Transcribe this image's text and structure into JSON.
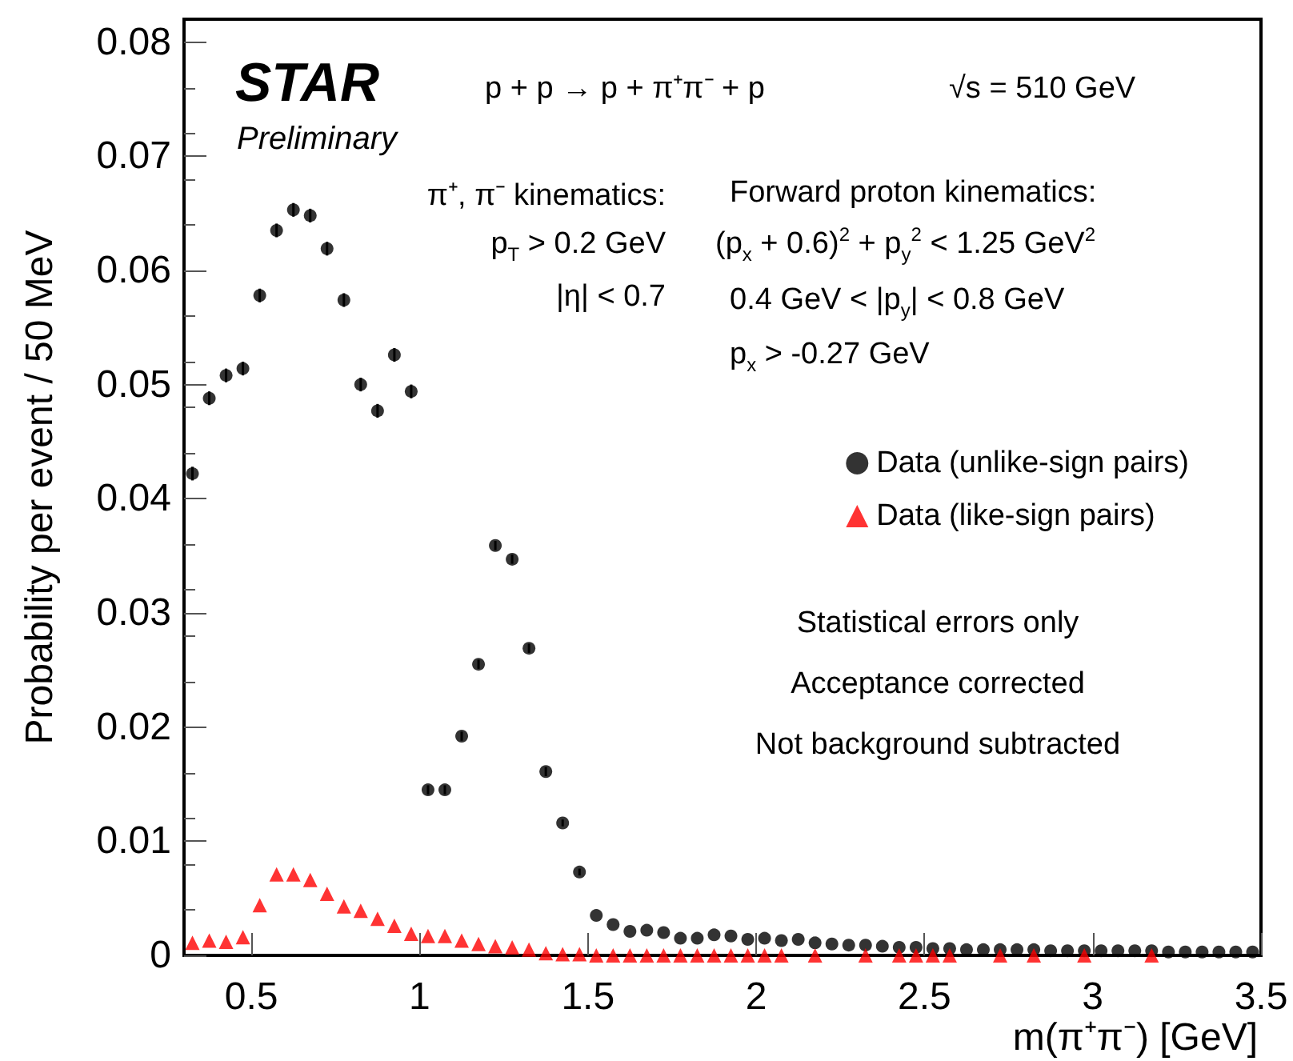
{
  "chart_data": {
    "type": "scatter",
    "xlabel": "m(π⁺π⁻) [GeV]",
    "ylabel": "Probability per event / 50 MeV",
    "xlim": [
      0.3,
      3.5
    ],
    "xticks": [
      0.5,
      1,
      1.5,
      2,
      2.5,
      3,
      3.5
    ],
    "ylim": [
      0,
      0.082
    ],
    "yticks": [
      0,
      0.01,
      0.02,
      0.03,
      0.04,
      0.05,
      0.06,
      0.07,
      0.08
    ],
    "grid": false,
    "legend": "right",
    "annotations": [
      "STAR",
      "Preliminary",
      "p + p → p + π⁺π⁻ + p",
      "√s = 510 GeV",
      "π⁺, π⁻ kinematics:",
      "p$_{T}$ > 0.2 GeV",
      "|η| < 0.7",
      "Forward proton kinematics:",
      "(p$_{x}$ + 0.6)$^{2}$ + p$_{y}$$^{2}$ < 1.25 GeV$^{2}$",
      "0.4 GeV < |p$_{y}$| < 0.8 GeV",
      "p$_{x}$ > -0.27 GeV",
      "Statistical errors only",
      "Acceptance corrected",
      "Not background subtracted"
    ],
    "series": [
      {
        "name": "Data (unlike-sign pairs)",
        "color": "#000000",
        "marker": "circle",
        "x": [
          0.325,
          0.375,
          0.425,
          0.475,
          0.525,
          0.575,
          0.625,
          0.675,
          0.725,
          0.775,
          0.825,
          0.875,
          0.925,
          0.975,
          1.025,
          1.075,
          1.125,
          1.175,
          1.225,
          1.275,
          1.325,
          1.375,
          1.425,
          1.475,
          1.525,
          1.575,
          1.625,
          1.675,
          1.725,
          1.775,
          1.825,
          1.875,
          1.925,
          1.975,
          2.025,
          2.075,
          2.125,
          2.175,
          2.225,
          2.275,
          2.325,
          2.375,
          2.425,
          2.475,
          2.525,
          2.575,
          2.625,
          2.675,
          2.725,
          2.775,
          2.825,
          2.875,
          2.925,
          2.975,
          3.025,
          3.075,
          3.125,
          3.175,
          3.225,
          3.275,
          3.325,
          3.375,
          3.425,
          3.475
        ],
        "values": [
          0.0422,
          0.0488,
          0.0508,
          0.0514,
          0.0578,
          0.0635,
          0.0653,
          0.0648,
          0.0619,
          0.0574,
          0.05,
          0.0477,
          0.0526,
          0.0494,
          0.0145,
          0.0145,
          0.0192,
          0.0255,
          0.0359,
          0.0347,
          0.0269,
          0.0161,
          0.0116,
          0.0073,
          0.0035,
          0.0027,
          0.0021,
          0.0022,
          0.002,
          0.0015,
          0.0015,
          0.0018,
          0.0017,
          0.0014,
          0.0015,
          0.0013,
          0.0014,
          0.0011,
          0.001,
          0.0009,
          0.0009,
          0.0008,
          0.0007,
          0.0007,
          0.0006,
          0.0006,
          0.0005,
          0.0005,
          0.0005,
          0.0005,
          0.0005,
          0.0004,
          0.0004,
          0.0004,
          0.0004,
          0.0004,
          0.0004,
          0.0004,
          0.0003,
          0.0003,
          0.0003,
          0.0003,
          0.0003,
          0.0003
        ],
        "errors": [
          0.0006,
          0.0006,
          0.0006,
          0.0006,
          0.0006,
          0.0006,
          0.0006,
          0.0006,
          0.0006,
          0.0006,
          0.0006,
          0.0006,
          0.0006,
          0.0006,
          0.0004,
          0.0004,
          0.0004,
          0.0004,
          0.0004,
          0.0004,
          0.0004,
          0.0004,
          0.0003,
          0.0003,
          null,
          null,
          null,
          null,
          null,
          null,
          null,
          null,
          null,
          null,
          null,
          null,
          null,
          null,
          null,
          null,
          null,
          null,
          null,
          null,
          null,
          null,
          null,
          null,
          null,
          null,
          null,
          null,
          null,
          null,
          null,
          null,
          null,
          null,
          null,
          null,
          null,
          null,
          null,
          null
        ]
      },
      {
        "name": "Data (like-sign pairs)",
        "color": "#ff0000",
        "marker": "triangle",
        "x": [
          0.325,
          0.375,
          0.425,
          0.475,
          0.525,
          0.575,
          0.625,
          0.675,
          0.725,
          0.775,
          0.825,
          0.875,
          0.925,
          0.975,
          1.025,
          1.075,
          1.125,
          1.175,
          1.225,
          1.275,
          1.325,
          1.375,
          1.425,
          1.475,
          1.525,
          1.575,
          1.625,
          1.675,
          1.725,
          1.775,
          1.825,
          1.875,
          1.925,
          1.975,
          2.025,
          2.075,
          2.175,
          2.325,
          2.425,
          2.475,
          2.525,
          2.575,
          2.725,
          2.825,
          2.975,
          3.175
        ],
        "values": [
          0.0011,
          0.0013,
          0.0012,
          0.0016,
          0.0044,
          0.0071,
          0.0071,
          0.0066,
          0.0054,
          0.0043,
          0.0039,
          0.0032,
          0.0026,
          0.0019,
          0.0017,
          0.0017,
          0.0013,
          0.001,
          0.0008,
          0.0007,
          0.0005,
          0.0002,
          0.0001,
          0.0001,
          0,
          0,
          0,
          0,
          0,
          0,
          0,
          0,
          0,
          0,
          0,
          0,
          0,
          0,
          0,
          0,
          0,
          0,
          0,
          0,
          0,
          0
        ]
      }
    ]
  }
}
